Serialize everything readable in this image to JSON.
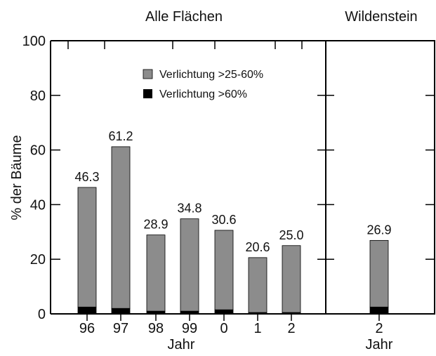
{
  "chart_data": [
    {
      "type": "bar",
      "stacked": true,
      "title": "Alle Flächen",
      "xlabel": "Jahr",
      "ylabel": "% der Bäume",
      "ylim": [
        0,
        100
      ],
      "yticks": [
        0,
        20,
        40,
        60,
        80,
        100
      ],
      "categories": [
        "96",
        "97",
        "98",
        "99",
        "0",
        "1",
        "2"
      ],
      "series": [
        {
          "name": "Verlichtung >60%",
          "color": "#000000",
          "values": [
            2.5,
            2.0,
            1.0,
            1.0,
            1.5,
            0.5,
            0.5
          ]
        },
        {
          "name": "Verlichtung >25-60%",
          "color": "#8c8c8c",
          "values": [
            43.8,
            59.2,
            27.9,
            33.8,
            29.1,
            20.1,
            24.5
          ]
        }
      ],
      "totals": [
        "46.3",
        "61.2",
        "28.9",
        "34.8",
        "30.6",
        "20.6",
        "25.0"
      ],
      "legend": "top-center",
      "grid": false
    },
    {
      "type": "bar",
      "stacked": true,
      "title": "Wildenstein",
      "xlabel": "Jahr",
      "ylim": [
        0,
        100
      ],
      "categories": [
        "2"
      ],
      "series": [
        {
          "name": "Verlichtung >60%",
          "color": "#000000",
          "values": [
            2.5
          ]
        },
        {
          "name": "Verlichtung >25-60%",
          "color": "#8c8c8c",
          "values": [
            24.4
          ]
        }
      ],
      "totals": [
        "26.9"
      ],
      "grid": false
    }
  ]
}
